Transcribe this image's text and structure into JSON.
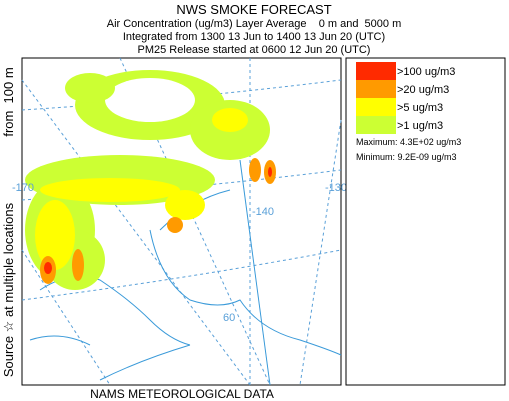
{
  "header": {
    "title": "NWS SMOKE FORECAST",
    "line1": "Air Concentration (ug/m3) Layer Average    0 m and  5000 m",
    "line2": "Integrated from 1300 13 Jun to 1400 13 Jun 20 (UTC)",
    "line3": "PM25 Release started at 0600 12 Jun 20 (UTC)"
  },
  "side": {
    "source": "Source ☆ at multiple locations",
    "height": "from  100 m"
  },
  "footer": "NAMS METEOROLOGICAL DATA",
  "legend": {
    "items": [
      {
        "label": ">100 ug/m3",
        "color": "#ff2a00"
      },
      {
        "label": ">20 ug/m3",
        "color": "#ff9a00"
      },
      {
        "label": ">5 ug/m3",
        "color": "#ffff00"
      },
      {
        "label": ">1 ug/m3",
        "color": "#ccff33"
      }
    ],
    "maximum": "Maximum: 4.3E+02 ug/m3",
    "minimum": "Minimum: 9.2E-09 ug/m3"
  },
  "map": {
    "labels": [
      "-170",
      "-140",
      "-130",
      "60"
    ]
  }
}
